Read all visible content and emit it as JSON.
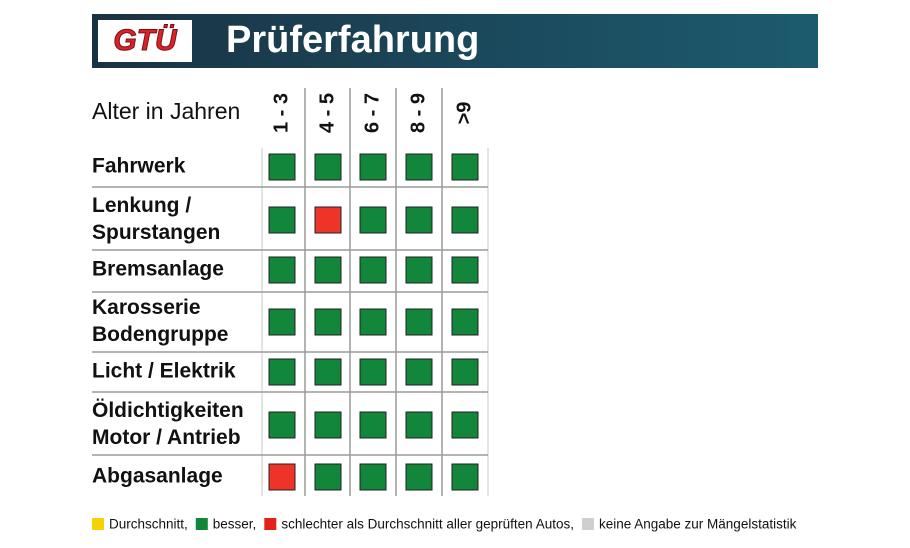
{
  "header": {
    "logo": "GTÜ",
    "title": "Prüferfahrung"
  },
  "table": {
    "corner_label": "Alter in Jahren",
    "columns": [
      "1 - 3",
      "4 - 5",
      "6 - 7",
      "8 - 9",
      ">9"
    ],
    "rows": [
      {
        "label": [
          "Fahrwerk"
        ],
        "cells": [
          "#12873c",
          "#12873c",
          "#12873c",
          "#12873c",
          "#12873c"
        ]
      },
      {
        "label": [
          "Lenkung /",
          "Spurstangen"
        ],
        "cells": [
          "#12873c",
          "#ee3328",
          "#12873c",
          "#12873c",
          "#12873c"
        ]
      },
      {
        "label": [
          "Bremsanlage"
        ],
        "cells": [
          "#12873c",
          "#12873c",
          "#12873c",
          "#12873c",
          "#12873c"
        ]
      },
      {
        "label": [
          "Karosserie",
          "Bodengruppe"
        ],
        "cells": [
          "#12873c",
          "#12873c",
          "#12873c",
          "#12873c",
          "#12873c"
        ]
      },
      {
        "label": [
          "Licht / Elektrik"
        ],
        "cells": [
          "#12873c",
          "#12873c",
          "#12873c",
          "#12873c",
          "#12873c"
        ]
      },
      {
        "label": [
          "Öldichtigkeiten",
          "Motor / Antrieb"
        ],
        "cells": [
          "#12873c",
          "#12873c",
          "#12873c",
          "#12873c",
          "#12873c"
        ]
      },
      {
        "label": [
          "Abgasanlage"
        ],
        "cells": [
          "#ee3328",
          "#12873c",
          "#12873c",
          "#12873c",
          "#12873c"
        ]
      }
    ]
  },
  "legend": [
    {
      "color": "#f5d10a",
      "label": "Durchschnitt,"
    },
    {
      "color": "#12873c",
      "label": "besser,"
    },
    {
      "color": "#e32119",
      "label": "schlechter als Durchschnitt aller geprüften Autos,"
    },
    {
      "color": "#cfcfcf",
      "label": "keine Angabe zur Mängelstatistik"
    }
  ]
}
